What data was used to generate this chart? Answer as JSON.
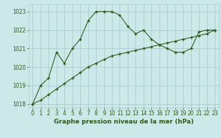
{
  "title": "Graphe pression niveau de la mer (hPa)",
  "bg_color": "#cce8e8",
  "grid_color": "#aacccc",
  "line_color": "#2d5a1b",
  "series1_x": [
    0,
    1,
    2,
    3,
    4,
    5,
    6,
    7,
    8,
    9,
    10,
    11,
    12,
    13,
    14,
    15,
    16,
    17,
    18,
    19,
    20,
    21,
    22,
    23
  ],
  "series1_y": [
    1018.0,
    1019.0,
    1019.4,
    1020.8,
    1020.2,
    1021.0,
    1021.5,
    1022.5,
    1023.0,
    1023.0,
    1023.0,
    1022.8,
    1022.2,
    1021.8,
    1022.0,
    1021.5,
    1021.2,
    1021.0,
    1020.8,
    1020.8,
    1021.0,
    1021.9,
    1022.0,
    1022.0
  ],
  "series2_x": [
    0,
    1,
    2,
    3,
    4,
    5,
    6,
    7,
    8,
    9,
    10,
    11,
    12,
    13,
    14,
    15,
    16,
    17,
    18,
    19,
    20,
    21,
    22,
    23
  ],
  "series2_y": [
    1018.0,
    1018.2,
    1018.5,
    1018.8,
    1019.1,
    1019.4,
    1019.7,
    1020.0,
    1020.2,
    1020.4,
    1020.6,
    1020.7,
    1020.8,
    1020.9,
    1021.0,
    1021.1,
    1021.2,
    1021.3,
    1021.4,
    1021.5,
    1021.6,
    1021.7,
    1021.8,
    1022.0
  ],
  "ylim_min": 1017.8,
  "ylim_max": 1023.4,
  "yticks": [
    1018,
    1019,
    1020,
    1021,
    1022,
    1023
  ],
  "xticks": [
    0,
    1,
    2,
    3,
    4,
    5,
    6,
    7,
    8,
    9,
    10,
    11,
    12,
    13,
    14,
    15,
    16,
    17,
    18,
    19,
    20,
    21,
    22,
    23
  ],
  "tick_fontsize": 5.5,
  "title_fontsize": 6.5,
  "marker": "+"
}
